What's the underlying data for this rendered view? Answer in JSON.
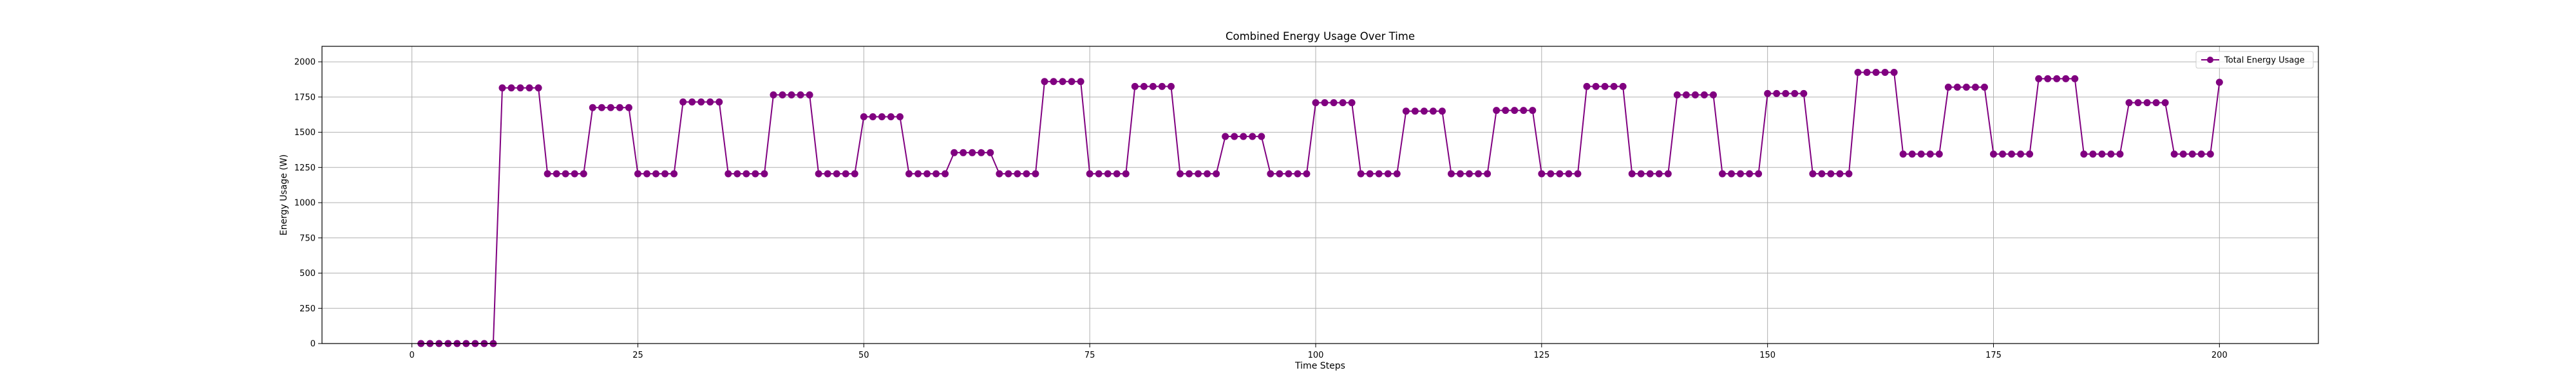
{
  "chart_data": {
    "type": "line",
    "title": "Combined Energy Usage Over Time",
    "xlabel": "Time Steps",
    "ylabel": "Energy Usage (W)",
    "xlim": [
      -9.95,
      210.95
    ],
    "ylim": [
      0,
      2110
    ],
    "x_ticks": [
      0,
      25,
      50,
      75,
      100,
      125,
      150,
      175,
      200
    ],
    "y_ticks": [
      0,
      250,
      500,
      750,
      1000,
      1250,
      1500,
      1750,
      2000
    ],
    "grid": true,
    "legend": "top-right",
    "series": [
      {
        "name": "Total Energy Usage",
        "color": "#800080",
        "marker": "circle",
        "x": [
          1,
          2,
          3,
          4,
          5,
          6,
          7,
          8,
          9,
          10,
          11,
          12,
          13,
          14,
          15,
          16,
          17,
          18,
          19,
          20,
          21,
          22,
          23,
          24,
          25,
          26,
          27,
          28,
          29,
          30,
          31,
          32,
          33,
          34,
          35,
          36,
          37,
          38,
          39,
          40,
          41,
          42,
          43,
          44,
          45,
          46,
          47,
          48,
          49,
          50,
          51,
          52,
          53,
          54,
          55,
          56,
          57,
          58,
          59,
          60,
          61,
          62,
          63,
          64,
          65,
          66,
          67,
          68,
          69,
          70,
          71,
          72,
          73,
          74,
          75,
          76,
          77,
          78,
          79,
          80,
          81,
          82,
          83,
          84,
          85,
          86,
          87,
          88,
          89,
          90,
          91,
          92,
          93,
          94,
          95,
          96,
          97,
          98,
          99,
          100,
          101,
          102,
          103,
          104,
          105,
          106,
          107,
          108,
          109,
          110,
          111,
          112,
          113,
          114,
          115,
          116,
          117,
          118,
          119,
          120,
          121,
          122,
          123,
          124,
          125,
          126,
          127,
          128,
          129,
          130,
          131,
          132,
          133,
          134,
          135,
          136,
          137,
          138,
          139,
          140,
          141,
          142,
          143,
          144,
          145,
          146,
          147,
          148,
          149,
          150,
          151,
          152,
          153,
          154,
          155,
          156,
          157,
          158,
          159,
          160,
          161,
          162,
          163,
          164,
          165,
          166,
          167,
          168,
          169,
          170,
          171,
          172,
          173,
          174,
          175,
          176,
          177,
          178,
          179,
          180,
          181,
          182,
          183,
          184,
          185,
          186,
          187,
          188,
          189,
          190,
          191,
          192,
          193,
          194,
          195,
          196,
          197,
          198,
          199,
          200
        ],
        "y": [
          0,
          0,
          0,
          0,
          0,
          0,
          0,
          0,
          0,
          1815,
          1815,
          1815,
          1815,
          1815,
          1205,
          1205,
          1205,
          1205,
          1205,
          1675,
          1675,
          1675,
          1675,
          1675,
          1205,
          1205,
          1205,
          1205,
          1205,
          1715,
          1715,
          1715,
          1715,
          1715,
          1205,
          1205,
          1205,
          1205,
          1205,
          1765,
          1765,
          1765,
          1765,
          1765,
          1205,
          1205,
          1205,
          1205,
          1205,
          1610,
          1610,
          1610,
          1610,
          1610,
          1205,
          1205,
          1205,
          1205,
          1205,
          1355,
          1355,
          1355,
          1355,
          1355,
          1205,
          1205,
          1205,
          1205,
          1205,
          1860,
          1860,
          1860,
          1860,
          1860,
          1205,
          1205,
          1205,
          1205,
          1205,
          1825,
          1825,
          1825,
          1825,
          1825,
          1205,
          1205,
          1205,
          1205,
          1205,
          1470,
          1470,
          1470,
          1470,
          1470,
          1205,
          1205,
          1205,
          1205,
          1205,
          1710,
          1710,
          1710,
          1710,
          1710,
          1205,
          1205,
          1205,
          1205,
          1205,
          1650,
          1650,
          1650,
          1650,
          1650,
          1205,
          1205,
          1205,
          1205,
          1205,
          1655,
          1655,
          1655,
          1655,
          1655,
          1205,
          1205,
          1205,
          1205,
          1205,
          1825,
          1825,
          1825,
          1825,
          1825,
          1205,
          1205,
          1205,
          1205,
          1205,
          1765,
          1765,
          1765,
          1765,
          1765,
          1205,
          1205,
          1205,
          1205,
          1205,
          1775,
          1775,
          1775,
          1775,
          1775,
          1205,
          1205,
          1205,
          1205,
          1205,
          1925,
          1925,
          1925,
          1925,
          1925,
          1345,
          1345,
          1345,
          1345,
          1345,
          1820,
          1820,
          1820,
          1820,
          1820,
          1345,
          1345,
          1345,
          1345,
          1345,
          1880,
          1880,
          1880,
          1880,
          1880,
          1345,
          1345,
          1345,
          1345,
          1345,
          1710,
          1710,
          1710,
          1710,
          1710,
          1345,
          1345,
          1345,
          1345,
          1345,
          1855
        ]
      }
    ]
  }
}
